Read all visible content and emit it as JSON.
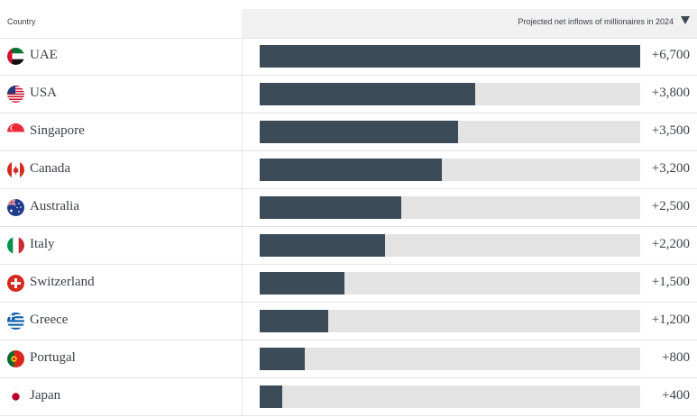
{
  "header": {
    "country_label": "Country",
    "metric_label": "Projected net inflows of millionaires in 2024",
    "sort_icon": "sort-descending-icon"
  },
  "colors": {
    "bar": "#3c4b58",
    "track": "#e3e3e3",
    "header_bg": "#f1f1f1"
  },
  "rows": [
    {
      "country": "UAE",
      "value_label": "+6,700",
      "flag_icon": "uae-flag-icon"
    },
    {
      "country": "USA",
      "value_label": "+3,800",
      "flag_icon": "usa-flag-icon"
    },
    {
      "country": "Singapore",
      "value_label": "+3,500",
      "flag_icon": "singapore-flag-icon"
    },
    {
      "country": "Canada",
      "value_label": "+3,200",
      "flag_icon": "canada-flag-icon"
    },
    {
      "country": "Australia",
      "value_label": "+2,500",
      "flag_icon": "australia-flag-icon"
    },
    {
      "country": "Italy",
      "value_label": "+2,200",
      "flag_icon": "italy-flag-icon"
    },
    {
      "country": "Switzerland",
      "value_label": "+1,500",
      "flag_icon": "switzerland-flag-icon"
    },
    {
      "country": "Greece",
      "value_label": "+1,200",
      "flag_icon": "greece-flag-icon"
    },
    {
      "country": "Portugal",
      "value_label": "+800",
      "flag_icon": "portugal-flag-icon"
    },
    {
      "country": "Japan",
      "value_label": "+400",
      "flag_icon": "japan-flag-icon"
    }
  ],
  "chart_data": {
    "type": "bar",
    "orientation": "horizontal",
    "title": "",
    "xlabel": "Projected net inflows of millionaires in 2024",
    "ylabel": "Country",
    "categories": [
      "UAE",
      "USA",
      "Singapore",
      "Canada",
      "Australia",
      "Italy",
      "Switzerland",
      "Greece",
      "Portugal",
      "Japan"
    ],
    "values": [
      6700,
      3800,
      3500,
      3200,
      2500,
      2200,
      1500,
      1200,
      800,
      400
    ],
    "xlim": [
      0,
      6700
    ],
    "grid": false,
    "legend": "none"
  }
}
